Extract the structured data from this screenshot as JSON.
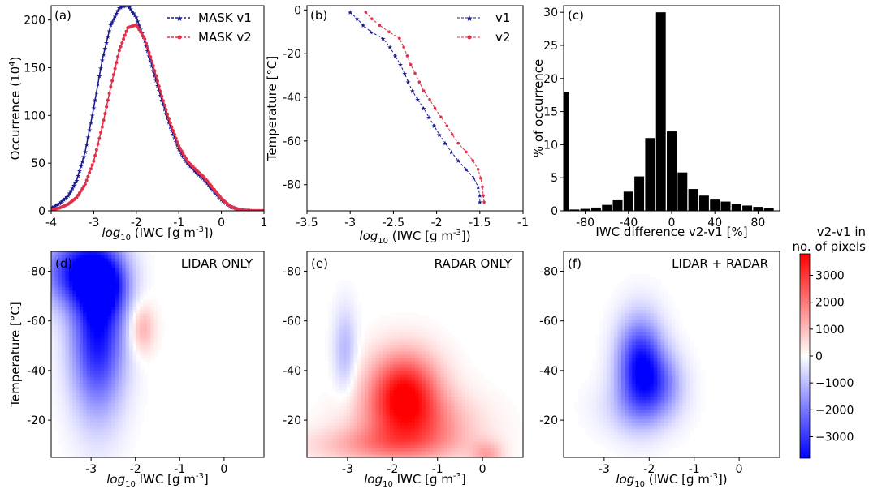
{
  "chart_data": [
    {
      "panel_label": "(a)",
      "type": "line",
      "xlabel_prefix": "log",
      "xlabel_sub": "10",
      "xlabel_rest": " (IWC [g m",
      "xlabel_sup": "-3",
      "xlabel_end": "])",
      "ylabel": "Occurrence (10",
      "ylabel_sup": "4",
      "ylabel_end": ")",
      "xlim": [
        -4,
        1
      ],
      "ylim": [
        0,
        215
      ],
      "xticks": [
        -4,
        -3,
        -2,
        -1,
        0,
        1
      ],
      "yticks": [
        0,
        50,
        100,
        150,
        200
      ],
      "legend_position": "top-right",
      "series": [
        {
          "name": "MASK v1",
          "color": "#1a1a8c",
          "x": [
            -4.0,
            -3.8,
            -3.6,
            -3.4,
            -3.2,
            -3.0,
            -2.8,
            -2.6,
            -2.4,
            -2.2,
            -2.0,
            -1.8,
            -1.6,
            -1.4,
            -1.2,
            -1.0,
            -0.8,
            -0.6,
            -0.4,
            -0.2,
            0.0,
            0.2,
            0.4,
            0.6,
            0.8,
            1.0
          ],
          "y": [
            3,
            8,
            16,
            32,
            62,
            108,
            158,
            195,
            213,
            216,
            203,
            178,
            147,
            116,
            88,
            65,
            50,
            41,
            33,
            22,
            12,
            5,
            1.5,
            0.4,
            0,
            0
          ]
        },
        {
          "name": "MASK v2",
          "color": "#e0304a",
          "x": [
            -4.0,
            -3.8,
            -3.6,
            -3.4,
            -3.2,
            -3.0,
            -2.8,
            -2.6,
            -2.4,
            -2.2,
            -2.0,
            -1.8,
            -1.6,
            -1.4,
            -1.2,
            -1.0,
            -0.8,
            -0.6,
            -0.4,
            -0.2,
            0.0,
            0.2,
            0.4,
            0.6,
            0.8,
            1.0
          ],
          "y": [
            1,
            3,
            7,
            14,
            28,
            52,
            88,
            130,
            168,
            192,
            195,
            180,
            152,
            120,
            92,
            68,
            52,
            43,
            35,
            24,
            13,
            5,
            1.5,
            0.4,
            0,
            0
          ]
        }
      ]
    },
    {
      "panel_label": "(b)",
      "type": "line",
      "xlabel_prefix": "log",
      "xlabel_sub": "10",
      "xlabel_rest": " (IWC [g m",
      "xlabel_sup": "-3",
      "xlabel_end": "])",
      "ylabel": "Temperature [°C]",
      "xlim": [
        -3.5,
        -1
      ],
      "ylim": [
        -92,
        2
      ],
      "xticks": [
        -3.5,
        -3,
        -2.5,
        -2,
        -1.5,
        -1
      ],
      "xtick_labels": [
        "-3.5",
        "-3",
        "-2.5",
        "-2",
        "-1.5",
        "-1"
      ],
      "yticks": [
        0,
        -20,
        -40,
        -60,
        -80
      ],
      "legend_position": "top-right",
      "series": [
        {
          "name": "v1",
          "color": "#1a1a8c",
          "y": [
            -1,
            -4,
            -7,
            -10,
            -13,
            -17,
            -21,
            -25,
            -29,
            -33,
            -37,
            -41,
            -45,
            -49,
            -53,
            -57,
            -61,
            -65,
            -69,
            -73,
            -77,
            -81,
            -85,
            -88
          ],
          "x": [
            -3.0,
            -2.92,
            -2.85,
            -2.76,
            -2.62,
            -2.54,
            -2.48,
            -2.42,
            -2.37,
            -2.33,
            -2.28,
            -2.22,
            -2.15,
            -2.09,
            -2.03,
            -1.97,
            -1.9,
            -1.83,
            -1.75,
            -1.66,
            -1.57,
            -1.52,
            -1.5,
            -1.5
          ]
        },
        {
          "name": "v2",
          "color": "#e0304a",
          "y": [
            -1,
            -4,
            -7,
            -10,
            -13,
            -17,
            -21,
            -25,
            -29,
            -33,
            -37,
            -41,
            -45,
            -49,
            -53,
            -57,
            -61,
            -65,
            -69,
            -73,
            -77,
            -81,
            -85,
            -88
          ],
          "x": [
            -2.82,
            -2.75,
            -2.66,
            -2.55,
            -2.43,
            -2.38,
            -2.34,
            -2.3,
            -2.25,
            -2.2,
            -2.15,
            -2.08,
            -2.02,
            -1.95,
            -1.88,
            -1.82,
            -1.75,
            -1.66,
            -1.58,
            -1.52,
            -1.49,
            -1.47,
            -1.46,
            -1.45
          ]
        }
      ]
    },
    {
      "panel_label": "(c)",
      "type": "bar",
      "xlabel": "IWC difference v2-v1 [%]",
      "ylabel": "% of occurrence",
      "xlim": [
        -100,
        100
      ],
      "ylim": [
        0,
        31
      ],
      "xticks": [
        -80,
        -40,
        0,
        40,
        80
      ],
      "yticks": [
        0,
        5,
        10,
        15,
        20,
        25,
        30
      ],
      "bar_color": "#000000",
      "bin_width": 9,
      "bins": [
        -100,
        -90,
        -80,
        -70,
        -60,
        -50,
        -40,
        -30,
        -20,
        -10,
        0,
        10,
        20,
        30,
        40,
        50,
        60,
        70,
        80,
        90
      ],
      "values": [
        18,
        0.2,
        0.3,
        0.5,
        0.9,
        1.6,
        2.9,
        5.2,
        11,
        30,
        12,
        5.8,
        3.3,
        2.3,
        1.7,
        1.4,
        1.0,
        0.8,
        0.6,
        0.4
      ]
    },
    {
      "panel_label": "(d)",
      "panel_title": "LIDAR ONLY",
      "type": "heatmap",
      "xlabel_prefix": "log",
      "xlabel_sub": "10",
      "xlabel_rest": " IWC [g m",
      "xlabel_sup": "-3",
      "xlabel_end": "]",
      "ylabel": "Temperature [°C]",
      "xlim": [
        -3.9,
        0.9
      ],
      "ylim": [
        -5,
        -88
      ],
      "xticks": [
        -3,
        -2,
        -1,
        0
      ],
      "yticks": [
        -80,
        -60,
        -40,
        -20
      ],
      "blobs": [
        {
          "x": -2.85,
          "y": -55,
          "sx": 0.42,
          "sy": 22,
          "v": -3600
        },
        {
          "x": -3.3,
          "y": -80,
          "sx": 0.55,
          "sy": 10,
          "v": -3200
        },
        {
          "x": -2.6,
          "y": -75,
          "sx": 0.35,
          "sy": 9,
          "v": -1800
        },
        {
          "x": -1.85,
          "y": -57,
          "sx": 0.2,
          "sy": 7,
          "v": 1300
        }
      ]
    },
    {
      "panel_label": "(e)",
      "panel_title": "RADAR ONLY",
      "type": "heatmap",
      "xlabel_prefix": "log",
      "xlabel_sub": "10",
      "xlabel_rest": " IWC [g m",
      "xlabel_sup": "-3",
      "xlabel_end": "]",
      "ylabel": "",
      "xlim": [
        -3.9,
        0.9
      ],
      "ylim": [
        -5,
        -88
      ],
      "xticks": [
        -3,
        -2,
        -1,
        0
      ],
      "yticks": [
        -80,
        -60,
        -40,
        -20
      ],
      "blobs": [
        {
          "x": -1.75,
          "y": -32,
          "sx": 0.55,
          "sy": 11,
          "v": 3500
        },
        {
          "x": -1.5,
          "y": -18,
          "sx": 0.9,
          "sy": 9,
          "v": 1800
        },
        {
          "x": -2.3,
          "y": -10,
          "sx": 1.1,
          "sy": 5,
          "v": 1200
        },
        {
          "x": -3.05,
          "y": -48,
          "sx": 0.18,
          "sy": 12,
          "v": -1100
        },
        {
          "x": 0.1,
          "y": -6,
          "sx": 0.25,
          "sy": 4,
          "v": 1200
        }
      ]
    },
    {
      "panel_label": "(f)",
      "panel_title": "LIDAR + RADAR",
      "type": "heatmap",
      "xlabel_prefix": "log",
      "xlabel_sub": "10",
      "xlabel_rest": " (IWC [g m",
      "xlabel_sup": "-3",
      "xlabel_end": "])",
      "ylabel": "",
      "xlim": [
        -3.9,
        0.9
      ],
      "ylim": [
        -5,
        -88
      ],
      "xticks": [
        -3,
        -2,
        -1,
        0
      ],
      "yticks": [
        -80,
        -60,
        -40,
        -20
      ],
      "blobs": [
        {
          "x": -2.2,
          "y": -42,
          "sx": 0.35,
          "sy": 13,
          "v": -3600
        },
        {
          "x": -1.7,
          "y": -35,
          "sx": 0.35,
          "sy": 9,
          "v": -1400
        },
        {
          "x": -2.3,
          "y": -25,
          "sx": 0.6,
          "sy": 8,
          "v": -700
        }
      ]
    }
  ],
  "colorbar": {
    "title_line1": "v2-v1 in",
    "title_line2": "no. of pixels",
    "range": [
      -3800,
      3800
    ],
    "ticks": [
      3000,
      2000,
      1000,
      0,
      -1000,
      -2000,
      -3000
    ],
    "tick_labels": [
      "3000",
      "2000",
      "1000",
      "0",
      "−1000",
      "−2000",
      "−3000"
    ],
    "color_low": "#0000ff",
    "color_mid": "#ffffff",
    "color_high": "#ff0000"
  }
}
